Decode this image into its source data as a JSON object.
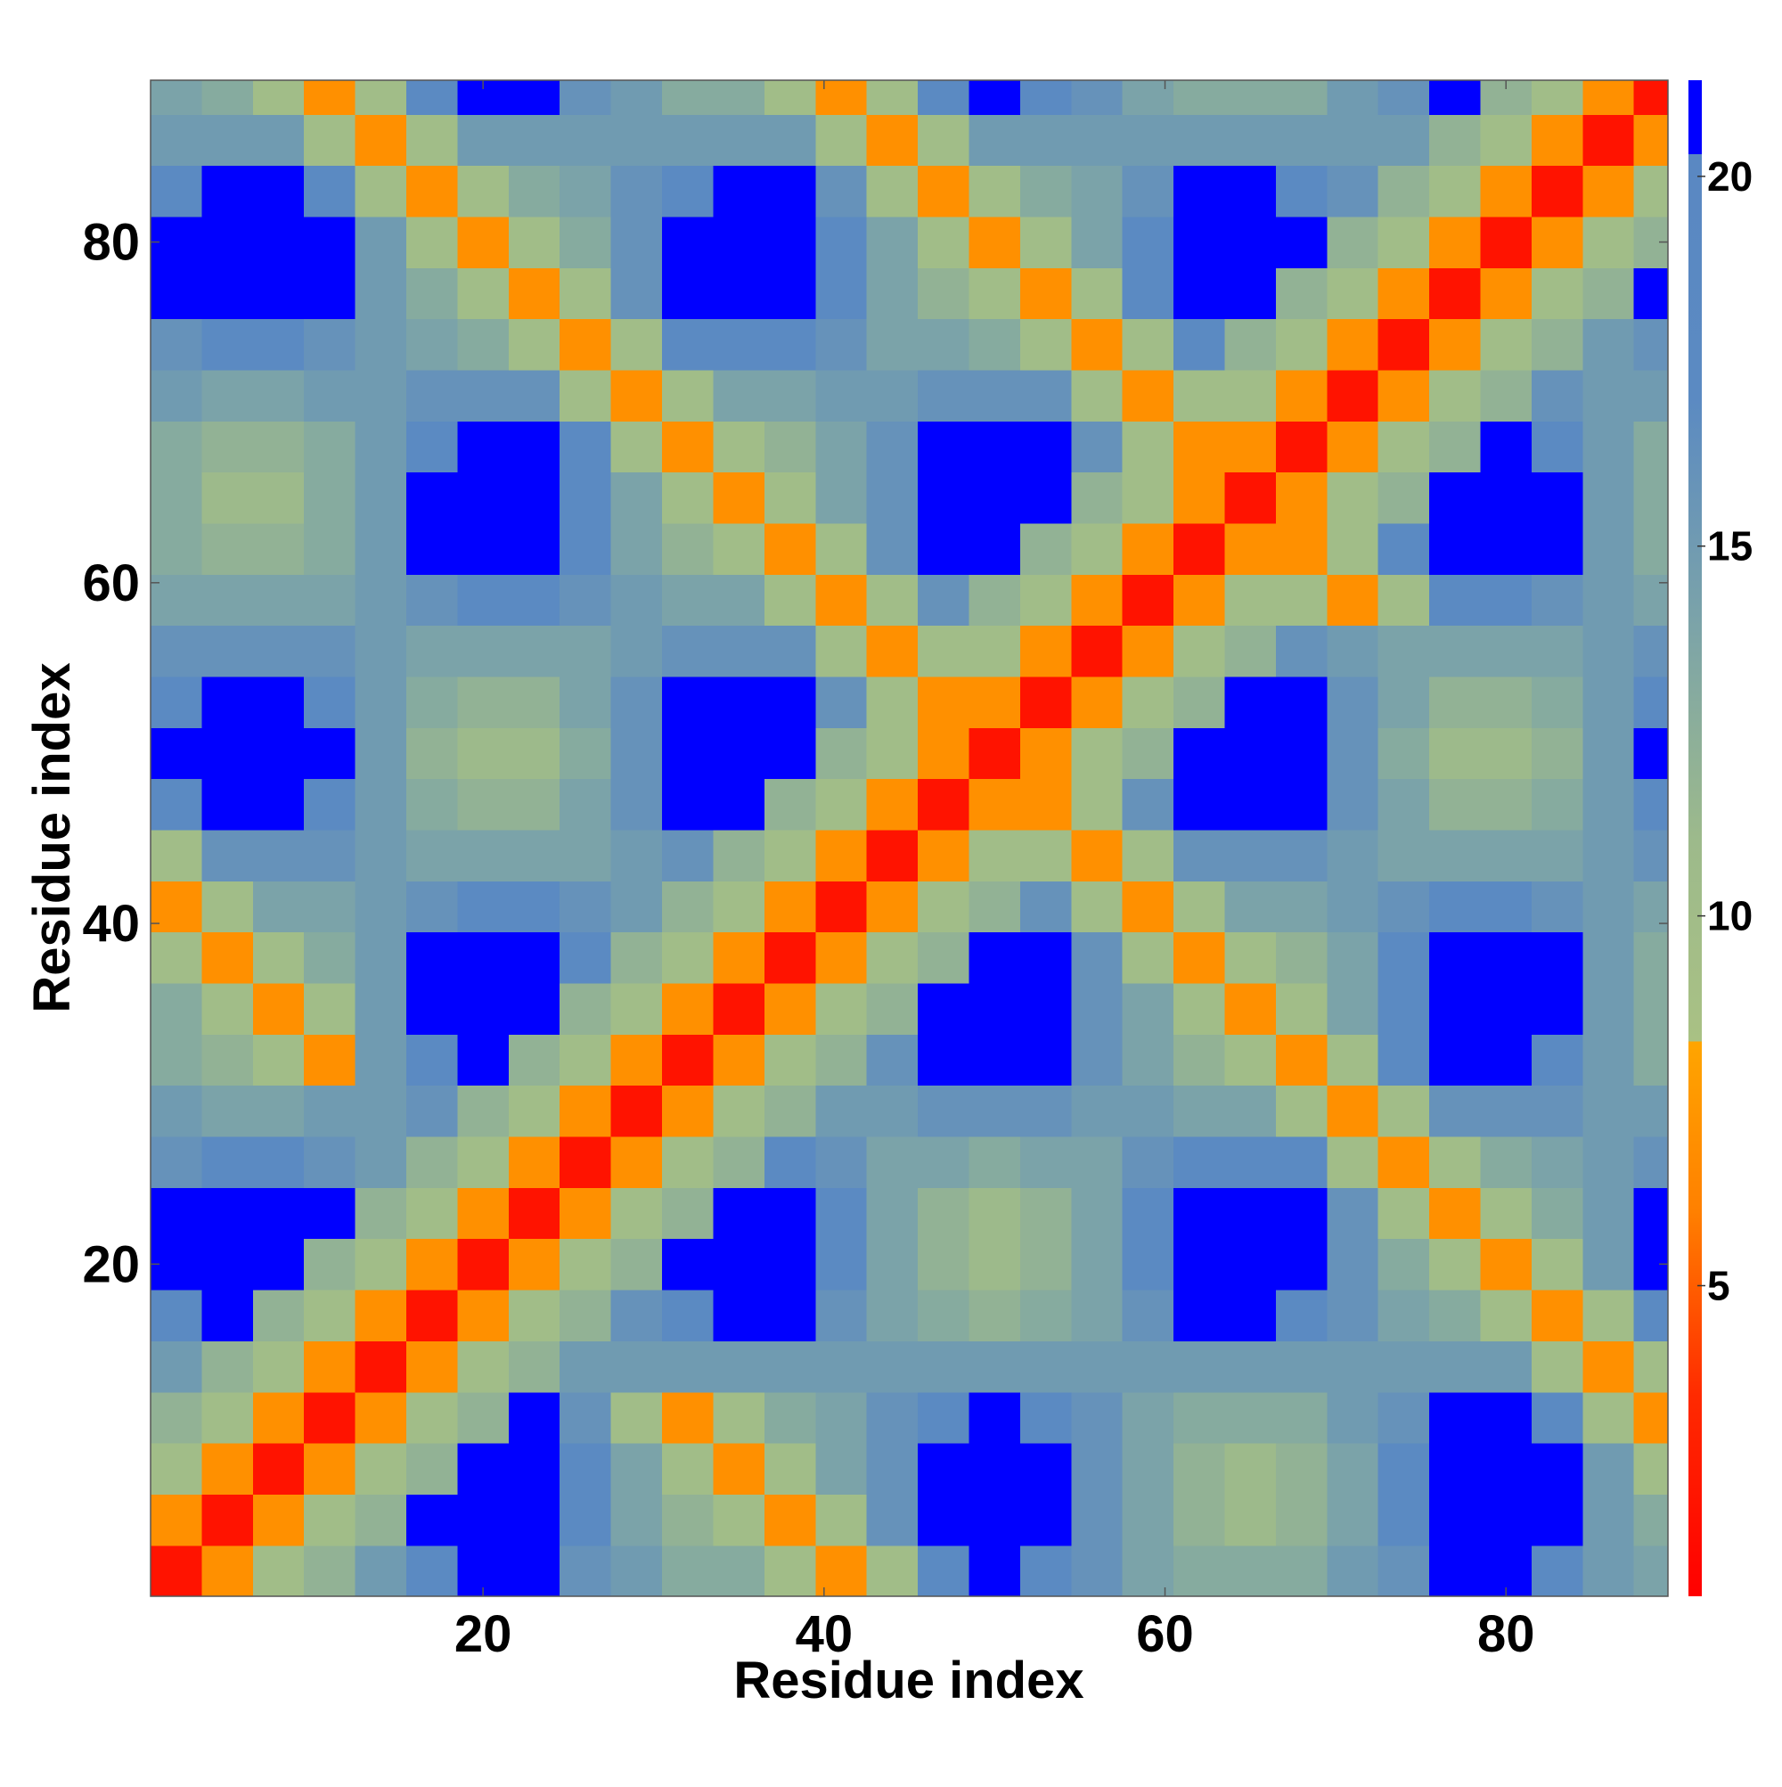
{
  "chart_data": {
    "type": "heatmap",
    "xlabel": "Residue index",
    "ylabel": "Residue index",
    "xlim": [
      0.5,
      89.5
    ],
    "ylim": [
      0.5,
      89.5
    ],
    "xticks": [
      20,
      40,
      60,
      80
    ],
    "yticks": [
      20,
      40,
      60,
      80
    ],
    "xbins": [
      0.5,
      3.5,
      6.5,
      9.5,
      12.5,
      15.5,
      18.5,
      21.5,
      24.5,
      27.5,
      30.5,
      33.5,
      36.5,
      39.5,
      42.5,
      45.5,
      48.5,
      51.5,
      54.5,
      57.5,
      60.5,
      63.5,
      66.5,
      69.5,
      72.5,
      75.5,
      78.5,
      81.5,
      84.5,
      87.5,
      89.5
    ],
    "ybins": [
      0.5,
      3.5,
      6.5,
      9.5,
      12.5,
      15.5,
      18.5,
      21.5,
      24.5,
      27.5,
      30.5,
      33.5,
      36.5,
      39.5,
      42.5,
      45.5,
      48.5,
      51.5,
      54.5,
      57.5,
      60.5,
      63.5,
      66.5,
      69.5,
      72.5,
      75.5,
      78.5,
      81.5,
      84.5,
      87.5,
      89.5
    ],
    "zlim": [
      0.8,
      21.3
    ],
    "zticks": [
      5,
      10,
      15,
      20
    ],
    "colorscale": [
      [
        0.8,
        "#ff0000"
      ],
      [
        3.5,
        "#ff2a00"
      ],
      [
        6,
        "#ff8000"
      ],
      [
        8.3,
        "#ffa500"
      ],
      [
        8.3,
        "#a9c184"
      ],
      [
        11,
        "#9dba8b"
      ],
      [
        14,
        "#7ba3a9"
      ],
      [
        17,
        "#5b8ac2"
      ],
      [
        20.3,
        "#5a88c2"
      ],
      [
        20.3,
        "#0000ff"
      ],
      [
        21.3,
        "#0000ff"
      ]
    ],
    "z": [
      [
        2,
        7,
        10,
        12,
        15,
        17,
        21,
        21,
        16,
        15,
        13,
        13,
        10,
        7,
        10,
        17,
        21,
        17,
        16,
        14,
        13,
        13,
        13,
        15,
        16,
        21,
        21,
        17,
        15,
        14
      ],
      [
        7,
        2,
        7,
        10,
        12,
        21,
        21,
        21,
        17,
        14,
        12,
        10,
        7,
        10,
        16,
        21,
        21,
        21,
        16,
        14,
        12,
        11,
        12,
        14,
        17,
        21,
        21,
        21,
        15,
        13
      ],
      [
        10,
        7,
        2,
        7,
        10,
        12,
        21,
        21,
        17,
        14,
        10,
        7,
        10,
        14,
        16,
        21,
        21,
        21,
        16,
        14,
        12,
        11,
        12,
        14,
        17,
        21,
        21,
        21,
        15,
        10
      ],
      [
        12,
        10,
        7,
        2,
        7,
        10,
        12,
        21,
        16,
        10,
        7,
        10,
        13,
        14,
        16,
        17,
        21,
        17,
        16,
        14,
        13,
        13,
        13,
        15,
        16,
        21,
        21,
        17,
        10,
        7
      ],
      [
        15,
        12,
        10,
        7,
        2,
        7,
        10,
        12,
        15,
        15,
        15,
        15,
        15,
        15,
        15,
        15,
        15,
        15,
        15,
        15,
        15,
        15,
        15,
        15,
        15,
        15,
        15,
        10,
        7,
        10
      ],
      [
        17,
        21,
        12,
        10,
        7,
        2,
        7,
        10,
        12,
        16,
        17,
        21,
        21,
        16,
        14,
        13,
        12,
        13,
        14,
        16,
        21,
        21,
        17,
        16,
        14,
        13,
        10,
        7,
        10,
        17
      ],
      [
        21,
        21,
        21,
        12,
        10,
        7,
        2,
        7,
        10,
        12,
        21,
        21,
        21,
        17,
        14,
        12,
        11,
        12,
        14,
        17,
        21,
        21,
        21,
        16,
        13,
        10,
        7,
        10,
        15,
        21
      ],
      [
        21,
        21,
        21,
        21,
        12,
        10,
        7,
        2,
        7,
        10,
        12,
        21,
        21,
        17,
        14,
        12,
        11,
        12,
        14,
        17,
        21,
        21,
        21,
        16,
        10,
        7,
        10,
        13,
        15,
        21
      ],
      [
        16,
        17,
        17,
        16,
        15,
        12,
        10,
        7,
        2,
        7,
        10,
        12,
        17,
        16,
        14,
        14,
        13,
        14,
        14,
        16,
        17,
        17,
        17,
        10,
        7,
        10,
        13,
        14,
        15,
        16
      ],
      [
        15,
        14,
        14,
        15,
        15,
        16,
        12,
        10,
        7,
        2,
        7,
        10,
        12,
        15,
        15,
        16,
        16,
        16,
        15,
        15,
        14,
        14,
        10,
        7,
        10,
        16,
        16,
        16,
        15,
        15
      ],
      [
        13,
        12,
        10,
        7,
        15,
        17,
        21,
        12,
        10,
        7,
        2,
        7,
        10,
        12,
        16,
        21,
        21,
        21,
        16,
        14,
        12,
        10,
        7,
        10,
        17,
        21,
        21,
        17,
        15,
        13
      ],
      [
        13,
        10,
        7,
        10,
        15,
        21,
        21,
        21,
        12,
        10,
        7,
        2,
        7,
        10,
        12,
        21,
        21,
        21,
        16,
        14,
        10,
        7,
        10,
        14,
        17,
        21,
        21,
        21,
        15,
        13
      ],
      [
        10,
        7,
        10,
        13,
        15,
        21,
        21,
        21,
        17,
        12,
        10,
        7,
        2,
        7,
        10,
        12,
        21,
        21,
        16,
        10,
        7,
        10,
        12,
        14,
        17,
        21,
        21,
        21,
        15,
        13
      ],
      [
        7,
        10,
        14,
        14,
        15,
        16,
        17,
        17,
        16,
        15,
        12,
        10,
        7,
        2,
        7,
        10,
        12,
        16,
        10,
        7,
        10,
        14,
        14,
        15,
        16,
        17,
        17,
        16,
        15,
        14
      ],
      [
        10,
        16,
        16,
        16,
        15,
        14,
        14,
        14,
        14,
        15,
        16,
        12,
        10,
        7,
        2,
        7,
        10,
        10,
        7,
        10,
        16,
        16,
        16,
        15,
        14,
        14,
        14,
        14,
        15,
        16
      ],
      [
        17,
        21,
        21,
        17,
        15,
        13,
        12,
        12,
        14,
        16,
        21,
        21,
        12,
        10,
        7,
        2,
        7,
        7,
        10,
        16,
        21,
        21,
        21,
        16,
        14,
        12,
        12,
        13,
        15,
        17
      ],
      [
        21,
        21,
        21,
        21,
        15,
        12,
        11,
        11,
        13,
        16,
        21,
        21,
        21,
        12,
        10,
        7,
        2,
        7,
        10,
        12,
        21,
        21,
        21,
        16,
        13,
        11,
        11,
        12,
        15,
        21
      ],
      [
        17,
        21,
        21,
        17,
        15,
        13,
        12,
        12,
        14,
        16,
        21,
        21,
        21,
        16,
        10,
        7,
        7,
        2,
        7,
        10,
        12,
        21,
        21,
        16,
        14,
        12,
        12,
        13,
        15,
        17
      ],
      [
        16,
        16,
        16,
        16,
        15,
        14,
        14,
        14,
        14,
        15,
        16,
        16,
        16,
        10,
        7,
        10,
        10,
        7,
        2,
        7,
        10,
        12,
        16,
        15,
        14,
        14,
        14,
        14,
        15,
        16
      ],
      [
        14,
        14,
        14,
        14,
        15,
        16,
        17,
        17,
        16,
        15,
        14,
        14,
        10,
        7,
        10,
        16,
        12,
        10,
        7,
        2,
        7,
        10,
        10,
        7,
        10,
        17,
        17,
        16,
        15,
        14
      ],
      [
        13,
        12,
        12,
        13,
        15,
        21,
        21,
        21,
        17,
        14,
        12,
        10,
        7,
        10,
        16,
        21,
        21,
        12,
        10,
        7,
        2,
        7,
        7,
        10,
        17,
        21,
        21,
        21,
        15,
        13
      ],
      [
        13,
        11,
        11,
        13,
        15,
        21,
        21,
        21,
        17,
        14,
        10,
        7,
        10,
        14,
        16,
        21,
        21,
        21,
        12,
        10,
        7,
        2,
        7,
        10,
        12,
        21,
        21,
        21,
        15,
        13
      ],
      [
        13,
        12,
        12,
        13,
        15,
        17,
        21,
        21,
        17,
        10,
        7,
        10,
        12,
        14,
        16,
        21,
        21,
        21,
        16,
        10,
        7,
        7,
        2,
        7,
        10,
        12,
        21,
        17,
        15,
        13
      ],
      [
        15,
        14,
        14,
        15,
        15,
        16,
        16,
        16,
        10,
        7,
        10,
        14,
        14,
        15,
        15,
        16,
        16,
        16,
        10,
        7,
        10,
        10,
        7,
        2,
        7,
        10,
        12,
        16,
        15,
        15
      ],
      [
        16,
        17,
        17,
        16,
        15,
        14,
        13,
        10,
        7,
        10,
        17,
        17,
        17,
        16,
        14,
        14,
        13,
        10,
        7,
        10,
        17,
        12,
        10,
        7,
        2,
        7,
        10,
        12,
        15,
        16
      ],
      [
        21,
        21,
        21,
        21,
        15,
        13,
        10,
        7,
        10,
        16,
        21,
        21,
        21,
        17,
        14,
        12,
        10,
        7,
        10,
        17,
        21,
        21,
        12,
        10,
        7,
        2,
        7,
        10,
        12,
        21
      ],
      [
        21,
        21,
        21,
        21,
        15,
        10,
        7,
        10,
        13,
        16,
        21,
        21,
        21,
        17,
        14,
        10,
        7,
        10,
        14,
        17,
        21,
        21,
        21,
        12,
        10,
        7,
        2,
        7,
        10,
        12
      ],
      [
        17,
        21,
        21,
        17,
        10,
        7,
        10,
        13,
        14,
        16,
        17,
        21,
        21,
        16,
        10,
        7,
        10,
        13,
        14,
        16,
        21,
        21,
        17,
        16,
        12,
        10,
        7,
        2,
        7,
        10
      ],
      [
        15,
        15,
        15,
        10,
        7,
        10,
        15,
        15,
        15,
        15,
        15,
        15,
        15,
        10,
        7,
        10,
        15,
        15,
        15,
        15,
        15,
        15,
        15,
        15,
        15,
        12,
        10,
        7,
        2,
        7
      ],
      [
        14,
        13,
        10,
        7,
        10,
        17,
        21,
        21,
        16,
        15,
        13,
        13,
        10,
        7,
        10,
        17,
        21,
        17,
        16,
        14,
        13,
        13,
        13,
        15,
        16,
        21,
        12,
        10,
        7,
        2
      ]
    ]
  }
}
